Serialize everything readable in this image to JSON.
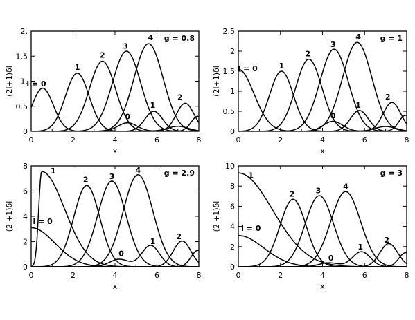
{
  "chart_data": [
    {
      "type": "line",
      "annotation": "g = 0.8",
      "xlabel": "x",
      "ylabel": "(2l+1)δl",
      "xlim": [
        0,
        8
      ],
      "ylim": [
        0,
        2
      ],
      "xticks": [
        "0",
        "2",
        "4",
        "6",
        "8"
      ],
      "yticks": [
        {
          "v": 0,
          "t": "0"
        },
        {
          "v": 0.5,
          "t": "0.5"
        },
        {
          "v": 1,
          "t": "1."
        },
        {
          "v": 1.5,
          "t": "1.5"
        },
        {
          "v": 2,
          "t": "2."
        }
      ],
      "series": [
        {
          "peaks": [
            {
              "x": 0.55,
              "y": 0.86,
              "w": 0.72
            }
          ]
        },
        {
          "peaks": [
            {
              "x": 2.2,
              "y": 1.16,
              "w": 0.8
            },
            {
              "x": 5.85,
              "y": 0.4,
              "w": 0.6
            }
          ]
        },
        {
          "peaks": [
            {
              "x": 3.4,
              "y": 1.4,
              "w": 0.88
            },
            {
              "x": 7.35,
              "y": 0.56,
              "w": 0.6
            }
          ]
        },
        {
          "peaks": [
            {
              "x": 4.55,
              "y": 1.6,
              "w": 0.95
            },
            {
              "x": 7.95,
              "y": 0.3,
              "w": 0.45
            }
          ]
        },
        {
          "peaks": [
            {
              "x": 5.6,
              "y": 1.75,
              "w": 0.98
            }
          ]
        },
        {
          "peaks": [
            {
              "x": 4.6,
              "y": 0.17,
              "w": 0.65
            },
            {
              "x": 7.0,
              "y": 0.1,
              "w": 0.7
            }
          ]
        }
      ],
      "labels": [
        {
          "text": "l = 0",
          "x": 0.25,
          "y": 0.9
        },
        {
          "text": "1",
          "x": 2.2,
          "y": 1.23
        },
        {
          "text": "2",
          "x": 3.4,
          "y": 1.47
        },
        {
          "text": "3",
          "x": 4.5,
          "y": 1.65
        },
        {
          "text": "4",
          "x": 5.7,
          "y": 1.82
        },
        {
          "text": "0",
          "x": 4.6,
          "y": 0.24
        },
        {
          "text": "1",
          "x": 5.8,
          "y": 0.47
        },
        {
          "text": "2",
          "x": 7.1,
          "y": 0.63
        }
      ]
    },
    {
      "type": "line",
      "annotation": "g = 1",
      "xlabel": "x",
      "ylabel": "(2l+1)δl",
      "xlim": [
        0,
        8
      ],
      "ylim": [
        0,
        2.5
      ],
      "xticks": [
        "0",
        "2",
        "4",
        "6",
        "8"
      ],
      "yticks": [
        {
          "v": 0,
          "t": "0"
        },
        {
          "v": 0.5,
          "t": "0.5"
        },
        {
          "v": 1,
          "t": "1"
        },
        {
          "v": 1.5,
          "t": "1.5"
        },
        {
          "v": 2,
          "t": "2"
        },
        {
          "v": 2.5,
          "t": "2.5"
        }
      ],
      "series": [
        {
          "peaks": [
            {
              "x": 0.0,
              "y": 1.55,
              "w": 1.05
            }
          ]
        },
        {
          "peaks": [
            {
              "x": 2.05,
              "y": 1.5,
              "w": 0.8
            },
            {
              "x": 5.75,
              "y": 0.52,
              "w": 0.6
            }
          ]
        },
        {
          "peaks": [
            {
              "x": 3.35,
              "y": 1.8,
              "w": 0.88
            },
            {
              "x": 7.3,
              "y": 0.72,
              "w": 0.6
            }
          ]
        },
        {
          "peaks": [
            {
              "x": 4.55,
              "y": 2.05,
              "w": 0.95
            },
            {
              "x": 7.95,
              "y": 0.4,
              "w": 0.45
            }
          ]
        },
        {
          "peaks": [
            {
              "x": 5.65,
              "y": 2.22,
              "w": 0.98
            }
          ]
        },
        {
          "peaks": [
            {
              "x": 4.5,
              "y": 0.25,
              "w": 0.65
            },
            {
              "x": 7.0,
              "y": 0.12,
              "w": 0.7
            }
          ]
        }
      ],
      "labels": [
        {
          "text": "l = 0",
          "x": 0.45,
          "y": 1.5
        },
        {
          "text": "1",
          "x": 2.05,
          "y": 1.57
        },
        {
          "text": "2",
          "x": 3.3,
          "y": 1.87
        },
        {
          "text": "3",
          "x": 4.5,
          "y": 2.1
        },
        {
          "text": "4",
          "x": 5.7,
          "y": 2.29
        },
        {
          "text": "0",
          "x": 4.5,
          "y": 0.32
        },
        {
          "text": "1",
          "x": 5.7,
          "y": 0.59
        },
        {
          "text": "2",
          "x": 7.1,
          "y": 0.79
        }
      ]
    },
    {
      "type": "line",
      "annotation": "g = 2.9",
      "xlabel": "x",
      "ylabel": "(2l+1)δl",
      "xlim": [
        0,
        8
      ],
      "ylim": [
        0,
        8
      ],
      "xticks": [
        "0",
        "2",
        "4",
        "6",
        "8"
      ],
      "yticks": [
        {
          "v": 0,
          "t": "0"
        },
        {
          "v": 2,
          "t": "2"
        },
        {
          "v": 4,
          "t": "4"
        },
        {
          "v": 6,
          "t": "6"
        },
        {
          "v": 8,
          "t": "8"
        }
      ],
      "series": [
        {
          "peaks": [
            {
              "x": 0.0,
              "y": 3.1,
              "w": 1.6
            }
          ]
        },
        {
          "kind": "asym",
          "peak": {
            "x": 0.5,
            "y": 7.55,
            "wl": 0.2,
            "wr": 1.55
          }
        },
        {
          "peaks": [
            {
              "x": 2.65,
              "y": 6.45,
              "w": 0.88
            },
            {
              "x": 7.2,
              "y": 2.05,
              "w": 0.6
            }
          ]
        },
        {
          "peaks": [
            {
              "x": 3.85,
              "y": 6.8,
              "w": 0.95
            },
            {
              "x": 7.95,
              "y": 1.3,
              "w": 0.45
            }
          ]
        },
        {
          "peaks": [
            {
              "x": 5.1,
              "y": 7.3,
              "w": 1.0
            }
          ]
        },
        {
          "peaks": [
            {
              "x": 5.7,
              "y": 1.7,
              "w": 0.6
            },
            {
              "x": 4.2,
              "y": 0.6,
              "w": 0.65
            }
          ]
        }
      ],
      "labels": [
        {
          "text": "1",
          "x": 1.05,
          "y": 7.4
        },
        {
          "text": "l = 0",
          "x": 0.55,
          "y": 3.4
        },
        {
          "text": "2",
          "x": 2.6,
          "y": 6.7
        },
        {
          "text": "3",
          "x": 3.85,
          "y": 6.95
        },
        {
          "text": "4",
          "x": 5.1,
          "y": 7.45
        },
        {
          "text": "0",
          "x": 4.3,
          "y": 0.85
        },
        {
          "text": "1",
          "x": 5.8,
          "y": 1.8
        },
        {
          "text": "2",
          "x": 7.05,
          "y": 2.2
        }
      ]
    },
    {
      "type": "line",
      "annotation": "g = 3",
      "xlabel": "x",
      "ylabel": "(2l+1)δl",
      "xlim": [
        0,
        8
      ],
      "ylim": [
        0,
        10
      ],
      "xticks": [
        "0",
        "2",
        "4",
        "6",
        "8"
      ],
      "yticks": [
        {
          "v": 0,
          "t": "0"
        },
        {
          "v": 2,
          "t": "2"
        },
        {
          "v": 4,
          "t": "4"
        },
        {
          "v": 6,
          "t": "6"
        },
        {
          "v": 8,
          "t": "8"
        },
        {
          "v": 10,
          "t": "10"
        }
      ],
      "series": [
        {
          "peaks": [
            {
              "x": 0.0,
              "y": 3.1,
              "w": 1.7
            }
          ]
        },
        {
          "kind": "asym",
          "peak": {
            "x": 0.0,
            "y": 9.3,
            "wl": 0.2,
            "wr": 2.3
          }
        },
        {
          "peaks": [
            {
              "x": 2.6,
              "y": 6.7,
              "w": 0.88
            },
            {
              "x": 7.15,
              "y": 2.3,
              "w": 0.6
            }
          ]
        },
        {
          "peaks": [
            {
              "x": 3.85,
              "y": 7.05,
              "w": 0.95
            },
            {
              "x": 7.95,
              "y": 1.4,
              "w": 0.45
            }
          ]
        },
        {
          "peaks": [
            {
              "x": 5.1,
              "y": 7.45,
              "w": 1.0
            }
          ]
        },
        {
          "peaks": [
            {
              "x": 5.85,
              "y": 1.5,
              "w": 0.6
            },
            {
              "x": 4.3,
              "y": 0.4,
              "w": 0.65
            }
          ]
        }
      ],
      "labels": [
        {
          "text": "1",
          "x": 0.6,
          "y": 8.8
        },
        {
          "text": "l = 0",
          "x": 0.6,
          "y": 3.55
        },
        {
          "text": "2",
          "x": 2.55,
          "y": 6.95
        },
        {
          "text": "3",
          "x": 3.8,
          "y": 7.3
        },
        {
          "text": "4",
          "x": 5.1,
          "y": 7.7
        },
        {
          "text": "0",
          "x": 4.4,
          "y": 0.6
        },
        {
          "text": "1",
          "x": 5.8,
          "y": 1.7
        },
        {
          "text": "2",
          "x": 7.05,
          "y": 2.4
        }
      ]
    }
  ]
}
